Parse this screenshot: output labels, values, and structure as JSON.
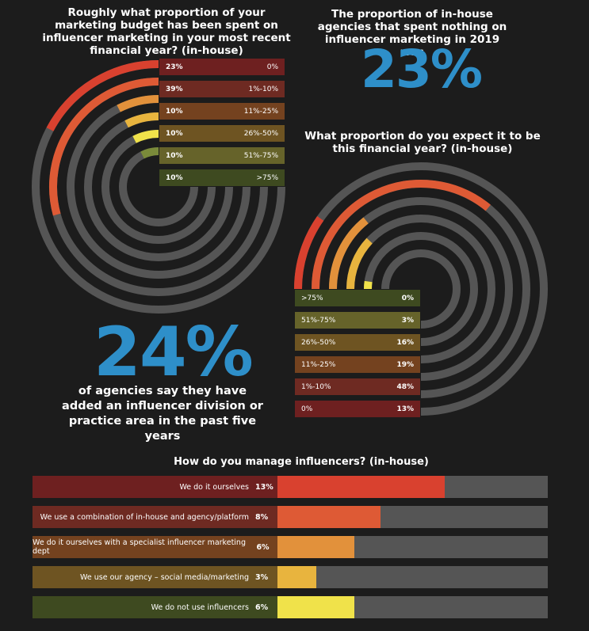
{
  "colors": {
    "bg": "#1c1c1c",
    "track": "#555555",
    "accent": "#2e8fc9",
    "bands": [
      "#d9412f",
      "#de5a35",
      "#e2913b",
      "#e8b43e",
      "#f0e24a",
      "#7a8a3a"
    ],
    "labels": [
      "#6e2020",
      "#6e2a22",
      "#74421f",
      "#6e5422",
      "#66632a",
      "#3e4a20"
    ]
  },
  "left_title": "Roughly what proportion of your marketing budget has been spent on influencer marketing in your most recent financial year? (in-house)",
  "top_right_text": "The proportion of in-house agencies that spent nothing on influencer marketing in 2019 was",
  "top_right_stat": "23%",
  "right_title": "What proportion do you expect it to be this financial year? (in-house)",
  "mid_stat": "24%",
  "mid_text": "of agencies say they have added an influencer division or practice area in the past five years",
  "bottom_title": "How do you manage influencers? (in-house)",
  "chart_data": [
    {
      "type": "radial-bar",
      "title": "Roughly what proportion of your marketing budget has been spent on influencer marketing in your most recent financial year? (in-house)",
      "categories": [
        "0%",
        "1%-10%",
        "11%-25%",
        "26%-50%",
        "51%-75%",
        ">75%"
      ],
      "values": [
        23,
        39,
        10,
        10,
        10,
        10
      ],
      "value_labels": [
        "23%",
        "39%",
        "10%",
        "10%",
        "10%",
        "10%"
      ],
      "max": 100
    },
    {
      "type": "radial-bar",
      "title": "What proportion do you expect it to be this financial year? (in-house)",
      "categories": [
        ">75%",
        "51%-75%",
        "26%-50%",
        "11%-25%",
        "1%-10%",
        "0%"
      ],
      "values": [
        0,
        3,
        16,
        19,
        48,
        13
      ],
      "value_labels": [
        "0%",
        "3%",
        "16%",
        "19%",
        "48%",
        "13%"
      ],
      "max": 100
    },
    {
      "type": "bar",
      "title": "How do you manage influencers? (in-house)",
      "categories": [
        "We do it ourselves",
        "We use a combination of in-house and agency/platform",
        "We do it ourselves with a specialist influencer marketing dept",
        "We use our agency – social media/marketing",
        "We do not use influencers"
      ],
      "values": [
        13,
        8,
        6,
        3,
        6
      ],
      "value_labels": [
        "13%",
        "8%",
        "6%",
        "3%",
        "6%"
      ],
      "xlim": [
        0,
        21
      ]
    }
  ]
}
